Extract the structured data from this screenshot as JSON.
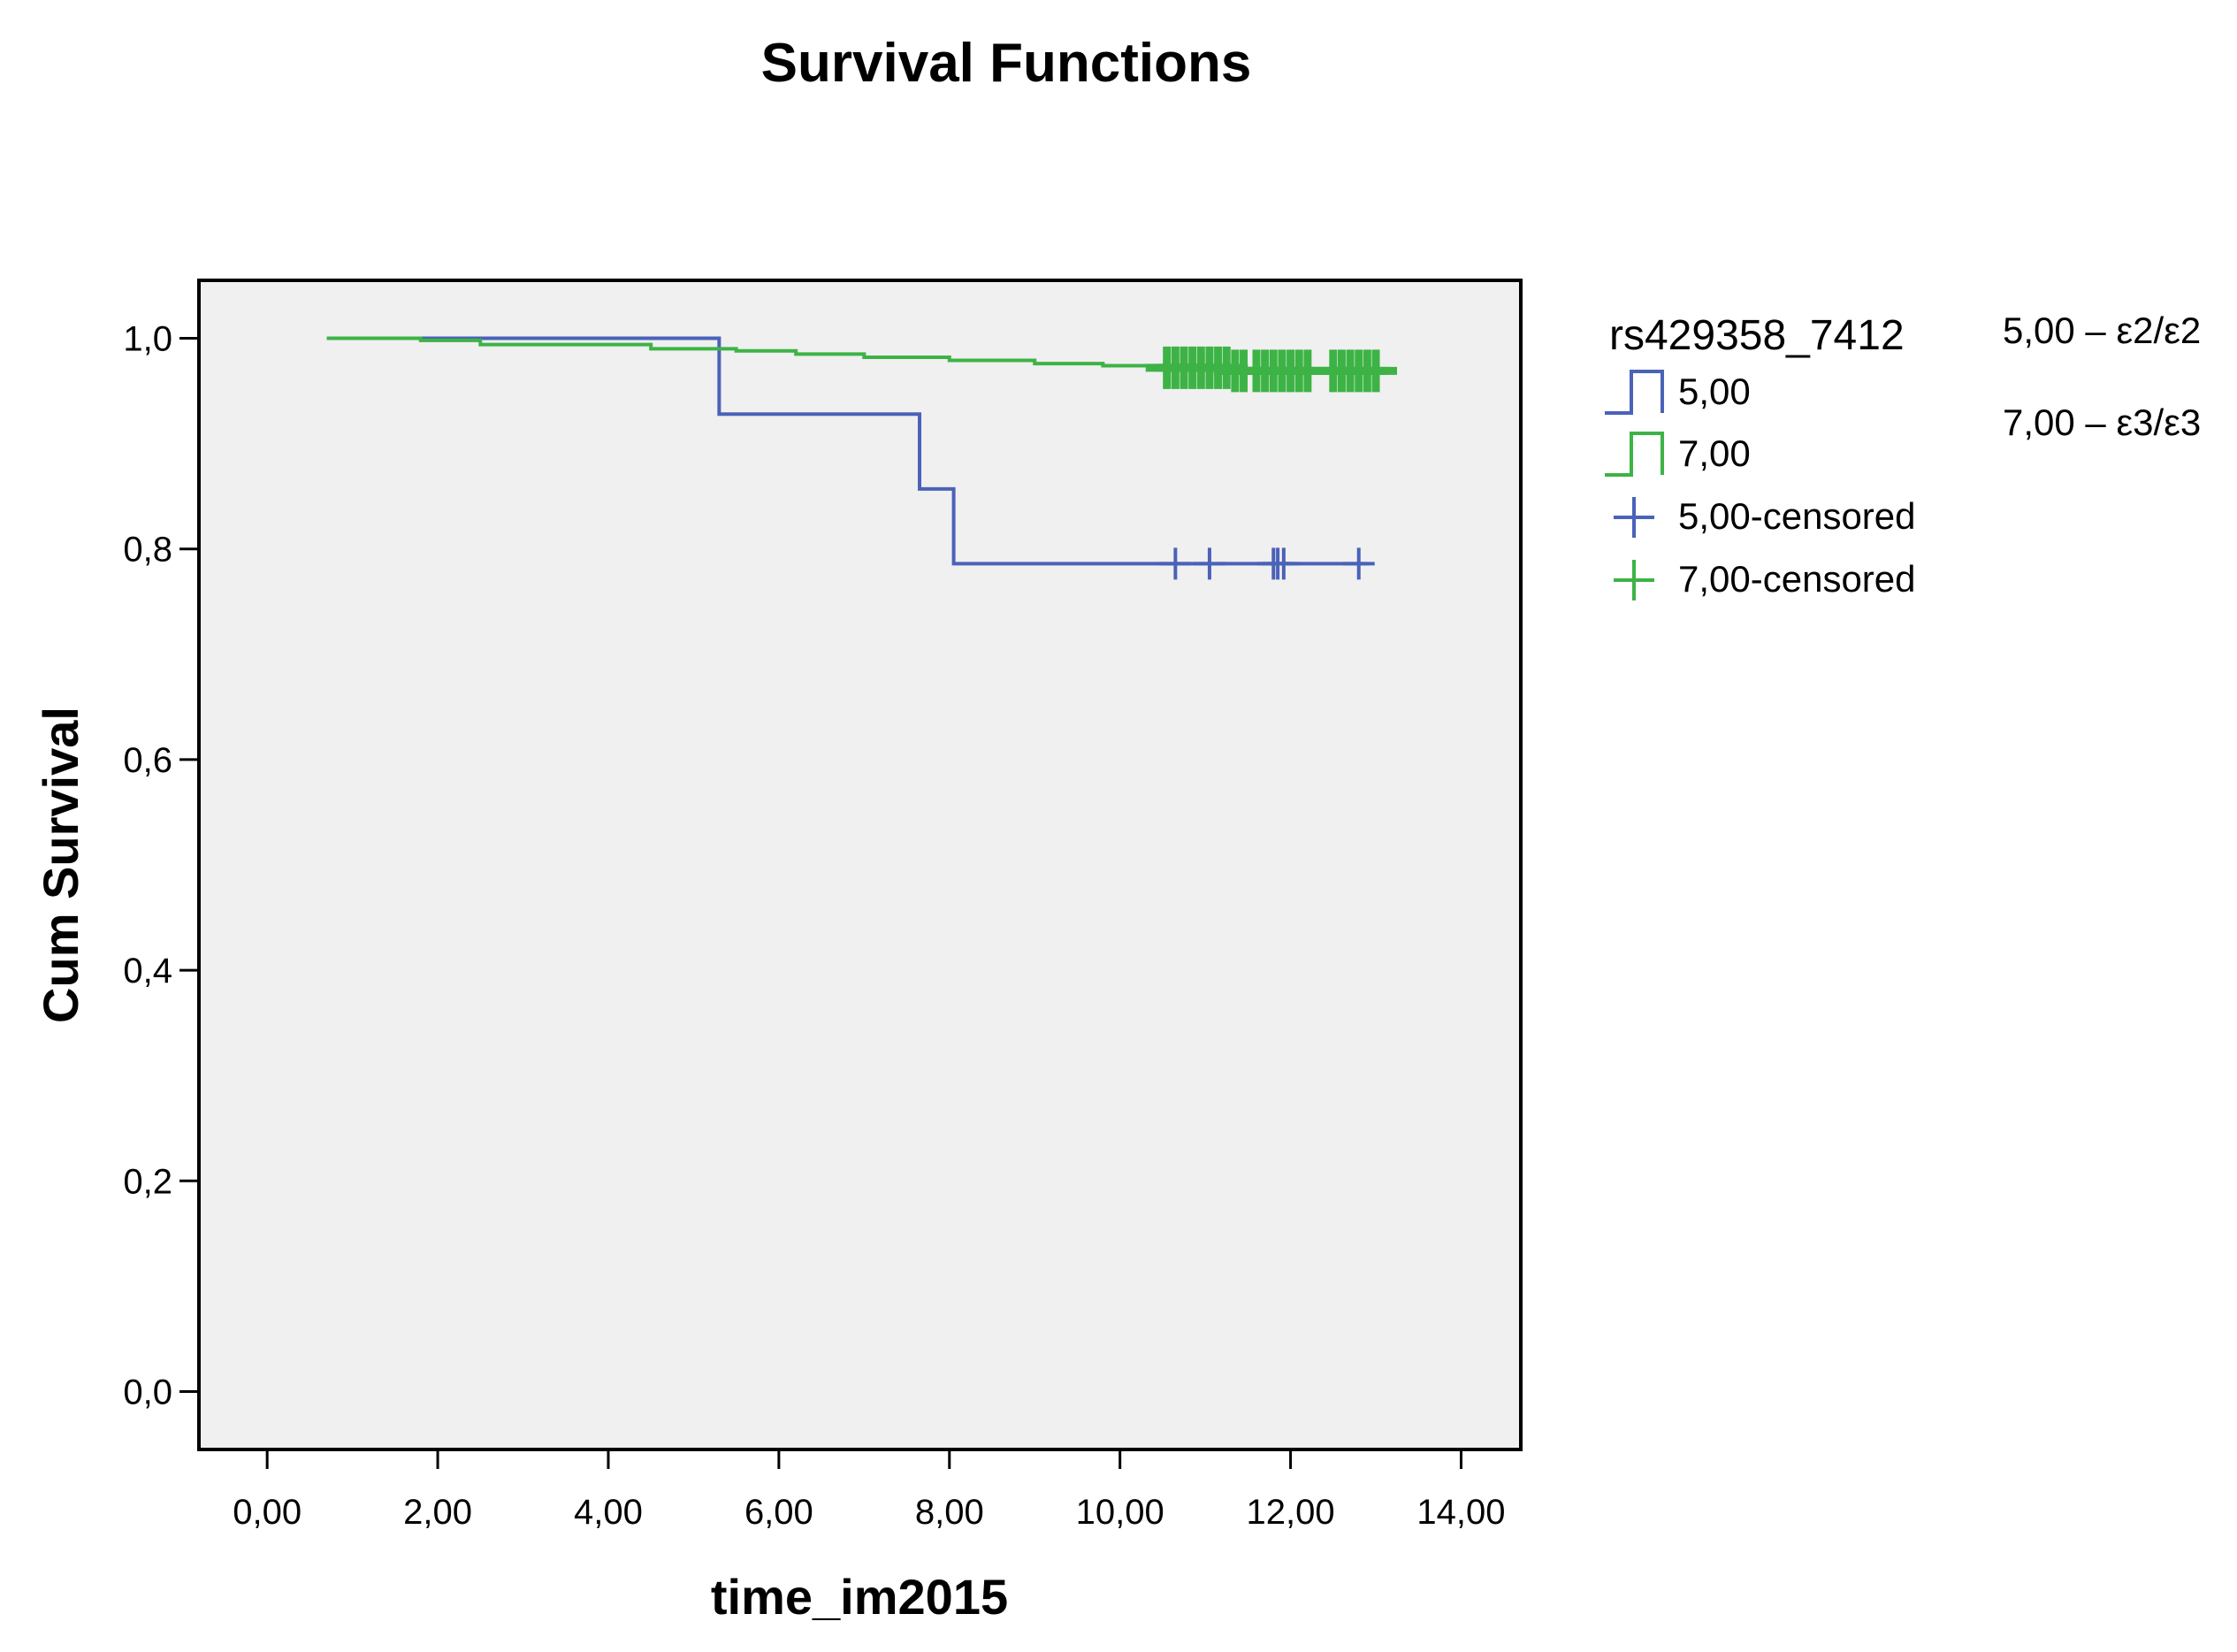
{
  "chart_data": {
    "type": "line",
    "subtype": "kaplan-meier step",
    "title": "Survival Functions",
    "xlabel": "time_im2015",
    "ylabel": "Cum Survival",
    "xlim": [
      -0.8,
      14.7
    ],
    "ylim": [
      -0.055,
      1.055
    ],
    "x_ticks": [
      {
        "value": 0,
        "label": "0,00"
      },
      {
        "value": 2,
        "label": "2,00"
      },
      {
        "value": 4,
        "label": "4,00"
      },
      {
        "value": 6,
        "label": "6,00"
      },
      {
        "value": 8,
        "label": "8,00"
      },
      {
        "value": 10,
        "label": "10,00"
      },
      {
        "value": 12,
        "label": "12,00"
      },
      {
        "value": 14,
        "label": "14,00"
      }
    ],
    "y_ticks": [
      {
        "value": 0.0,
        "label": "0,0"
      },
      {
        "value": 0.2,
        "label": "0,2"
      },
      {
        "value": 0.4,
        "label": "0,4"
      },
      {
        "value": 0.6,
        "label": "0,6"
      },
      {
        "value": 0.8,
        "label": "0,8"
      },
      {
        "value": 1.0,
        "label": "1,0"
      }
    ],
    "legend": {
      "title": "rs429358_7412",
      "position": "right",
      "entries": [
        "5,00",
        "7,00",
        "5,00-censored",
        "7,00-censored"
      ]
    },
    "series": [
      {
        "name": "5,00",
        "color": "#4a62b8",
        "steps": [
          {
            "x": 0.7,
            "y": 1.0
          },
          {
            "x": 5.3,
            "y": 0.928
          },
          {
            "x": 7.65,
            "y": 0.857
          },
          {
            "x": 8.05,
            "y": 0.786
          },
          {
            "x": 12.9,
            "y": 0.786
          }
        ],
        "censored": [
          10.65,
          11.05,
          11.8,
          11.85,
          11.92,
          12.8
        ]
      },
      {
        "name": "7,00",
        "color": "#3db346",
        "steps": [
          {
            "x": 0.7,
            "y": 1.0
          },
          {
            "x": 1.8,
            "y": 0.998
          },
          {
            "x": 2.5,
            "y": 0.994
          },
          {
            "x": 4.5,
            "y": 0.99
          },
          {
            "x": 5.5,
            "y": 0.988
          },
          {
            "x": 6.2,
            "y": 0.985
          },
          {
            "x": 7.0,
            "y": 0.982
          },
          {
            "x": 8.0,
            "y": 0.979
          },
          {
            "x": 9.0,
            "y": 0.976
          },
          {
            "x": 9.8,
            "y": 0.974
          },
          {
            "x": 10.5,
            "y": 0.972
          },
          {
            "x": 11.3,
            "y": 0.969
          },
          {
            "x": 13.1,
            "y": 0.969
          }
        ],
        "censored": [
          10.55,
          10.65,
          10.75,
          10.85,
          10.95,
          11.05,
          11.15,
          11.25,
          11.35,
          11.45,
          11.6,
          11.7,
          11.8,
          11.9,
          12.0,
          12.1,
          12.2,
          12.5,
          12.6,
          12.7,
          12.8,
          12.9,
          13.0
        ]
      }
    ]
  },
  "annotations": {
    "note_1": "5,00 – ε2/ε2",
    "note_2": "7,00 – ε3/ε3"
  }
}
